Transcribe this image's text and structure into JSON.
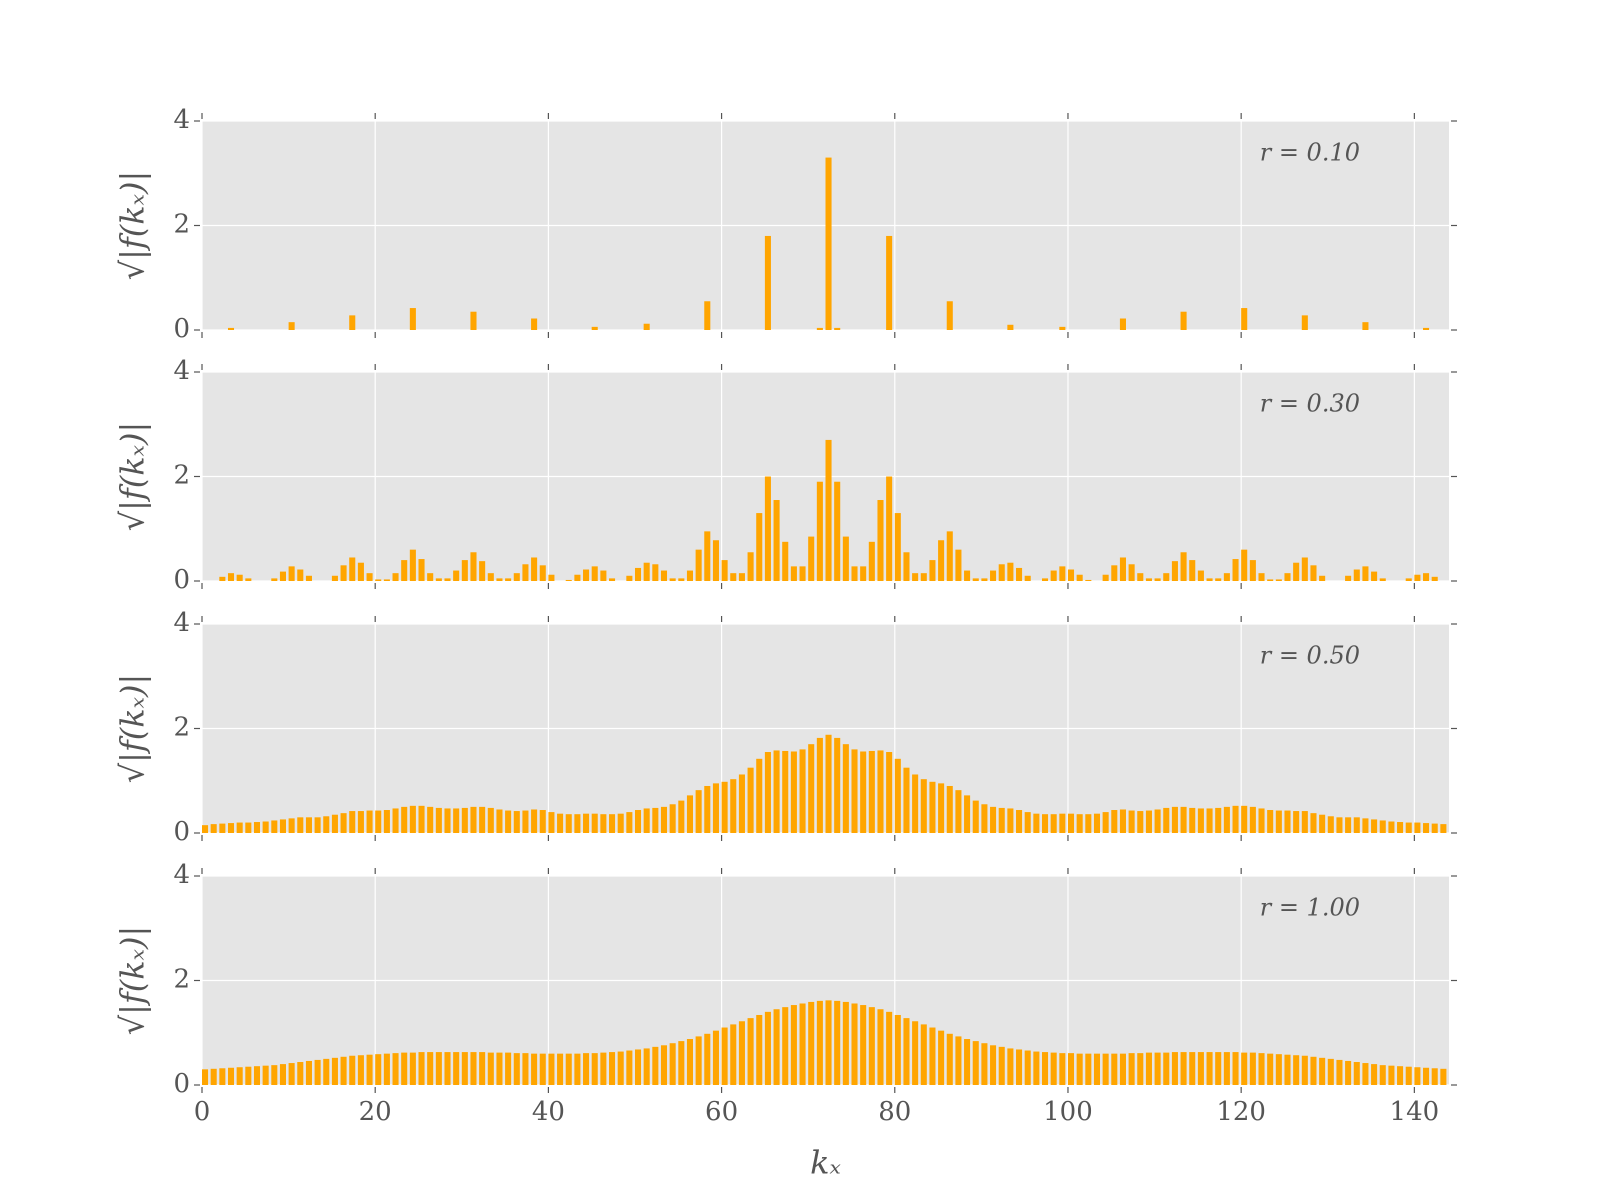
{
  "chart_data": {
    "type": "bar",
    "color": "#ffa500",
    "grid": true,
    "xlabel": "kₓ",
    "ylabel": "√|f(kₓ)|",
    "xlim": [
      0,
      144
    ],
    "xticks": [
      0,
      20,
      40,
      60,
      80,
      100,
      120,
      140
    ],
    "ylim": [
      0,
      4
    ],
    "yticks": [
      0,
      2,
      4
    ],
    "x": [
      0,
      1,
      2,
      3,
      4,
      5,
      6,
      7,
      8,
      9,
      10,
      11,
      12,
      13,
      14,
      15,
      16,
      17,
      18,
      19,
      20,
      21,
      22,
      23,
      24,
      25,
      26,
      27,
      28,
      29,
      30,
      31,
      32,
      33,
      34,
      35,
      36,
      37,
      38,
      39,
      40,
      41,
      42,
      43,
      44,
      45,
      46,
      47,
      48,
      49,
      50,
      51,
      52,
      53,
      54,
      55,
      56,
      57,
      58,
      59,
      60,
      61,
      62,
      63,
      64,
      65,
      66,
      67,
      68,
      69,
      70,
      71,
      72,
      73,
      74,
      75,
      76,
      77,
      78,
      79,
      80,
      81,
      82,
      83,
      84,
      85,
      86,
      87,
      88,
      89,
      90,
      91,
      92,
      93,
      94,
      95,
      96,
      97,
      98,
      99,
      100,
      101,
      102,
      103,
      104,
      105,
      106,
      107,
      108,
      109,
      110,
      111,
      112,
      113,
      114,
      115,
      116,
      117,
      118,
      119,
      120,
      121,
      122,
      123,
      124,
      125,
      126,
      127,
      128,
      129,
      130,
      131,
      132,
      133,
      134,
      135,
      136,
      137,
      138,
      139,
      140,
      141,
      142,
      143
    ],
    "series": [
      {
        "name": "r = 0.10",
        "values": [
          0,
          0,
          0,
          0.04,
          0,
          0,
          0,
          0,
          0,
          0,
          0.15,
          0,
          0,
          0,
          0,
          0,
          0,
          0.28,
          0,
          0,
          0,
          0,
          0,
          0,
          0.42,
          0,
          0,
          0,
          0,
          0,
          0,
          0.35,
          0,
          0,
          0,
          0,
          0,
          0,
          0.22,
          0,
          0,
          0,
          0,
          0,
          0,
          0.06,
          0,
          0,
          0,
          0,
          0,
          0.12,
          0,
          0,
          0,
          0,
          0,
          0,
          0.55,
          0,
          0,
          0,
          0,
          0,
          0,
          1.8,
          0,
          0,
          0,
          0,
          0,
          0.04,
          3.3,
          0.04,
          0,
          0,
          0,
          0,
          0,
          1.8,
          0,
          0,
          0,
          0,
          0,
          0,
          0.55,
          0,
          0,
          0,
          0,
          0,
          0,
          0.1,
          0,
          0,
          0,
          0,
          0,
          0.06,
          0,
          0,
          0,
          0,
          0,
          0,
          0.22,
          0,
          0,
          0,
          0,
          0,
          0,
          0.35,
          0,
          0,
          0,
          0,
          0,
          0,
          0.42,
          0,
          0,
          0,
          0,
          0,
          0,
          0.28,
          0,
          0,
          0,
          0,
          0,
          0,
          0.15,
          0,
          0,
          0,
          0,
          0,
          0,
          0.04,
          0,
          0
        ]
      },
      {
        "name": "r = 0.30",
        "values": [
          0,
          0,
          0.08,
          0.15,
          0.12,
          0.05,
          0,
          0,
          0.05,
          0.18,
          0.28,
          0.22,
          0.1,
          0,
          0,
          0.1,
          0.3,
          0.45,
          0.35,
          0.15,
          0.03,
          0.03,
          0.15,
          0.4,
          0.6,
          0.42,
          0.15,
          0.05,
          0.05,
          0.2,
          0.4,
          0.55,
          0.38,
          0.15,
          0.05,
          0.05,
          0.15,
          0.32,
          0.45,
          0.3,
          0.12,
          0,
          0.02,
          0.12,
          0.22,
          0.28,
          0.2,
          0.05,
          0,
          0.1,
          0.25,
          0.35,
          0.32,
          0.2,
          0.05,
          0.05,
          0.2,
          0.6,
          0.95,
          0.78,
          0.4,
          0.15,
          0.15,
          0.55,
          1.3,
          2.0,
          1.55,
          0.75,
          0.28,
          0.28,
          0.85,
          1.9,
          2.7,
          1.9,
          0.85,
          0.28,
          0.28,
          0.75,
          1.55,
          2.0,
          1.3,
          0.55,
          0.15,
          0.15,
          0.4,
          0.78,
          0.95,
          0.6,
          0.2,
          0.05,
          0.05,
          0.2,
          0.32,
          0.35,
          0.25,
          0.1,
          0,
          0.05,
          0.2,
          0.28,
          0.22,
          0.12,
          0.02,
          0,
          0.12,
          0.3,
          0.45,
          0.32,
          0.15,
          0.05,
          0.05,
          0.15,
          0.38,
          0.55,
          0.4,
          0.2,
          0.05,
          0.05,
          0.15,
          0.42,
          0.6,
          0.4,
          0.15,
          0.03,
          0.03,
          0.15,
          0.35,
          0.45,
          0.3,
          0.1,
          0,
          0,
          0.1,
          0.22,
          0.28,
          0.18,
          0.05,
          0,
          0,
          0.05,
          0.12,
          0.15,
          0.08,
          0
        ]
      },
      {
        "name": "r = 0.50",
        "values": [
          0.15,
          0.17,
          0.18,
          0.19,
          0.2,
          0.2,
          0.21,
          0.22,
          0.24,
          0.26,
          0.28,
          0.3,
          0.3,
          0.3,
          0.32,
          0.35,
          0.38,
          0.42,
          0.42,
          0.43,
          0.43,
          0.44,
          0.47,
          0.5,
          0.52,
          0.52,
          0.5,
          0.48,
          0.47,
          0.47,
          0.48,
          0.5,
          0.5,
          0.48,
          0.45,
          0.43,
          0.42,
          0.43,
          0.45,
          0.44,
          0.4,
          0.37,
          0.36,
          0.36,
          0.37,
          0.37,
          0.36,
          0.36,
          0.37,
          0.4,
          0.44,
          0.47,
          0.48,
          0.5,
          0.55,
          0.62,
          0.72,
          0.82,
          0.9,
          0.95,
          0.98,
          1.03,
          1.12,
          1.25,
          1.42,
          1.55,
          1.58,
          1.57,
          1.56,
          1.6,
          1.7,
          1.82,
          1.88,
          1.82,
          1.7,
          1.6,
          1.56,
          1.57,
          1.58,
          1.55,
          1.42,
          1.25,
          1.12,
          1.03,
          0.98,
          0.95,
          0.9,
          0.82,
          0.72,
          0.62,
          0.55,
          0.5,
          0.48,
          0.47,
          0.44,
          0.4,
          0.37,
          0.36,
          0.36,
          0.37,
          0.37,
          0.36,
          0.36,
          0.37,
          0.4,
          0.44,
          0.45,
          0.43,
          0.42,
          0.43,
          0.45,
          0.48,
          0.5,
          0.5,
          0.48,
          0.47,
          0.47,
          0.48,
          0.5,
          0.52,
          0.52,
          0.5,
          0.47,
          0.44,
          0.43,
          0.43,
          0.42,
          0.42,
          0.38,
          0.35,
          0.32,
          0.3,
          0.3,
          0.3,
          0.28,
          0.26,
          0.24,
          0.22,
          0.21,
          0.2,
          0.2,
          0.19,
          0.18,
          0.17
        ]
      },
      {
        "name": "r = 1.00",
        "values": [
          0.3,
          0.31,
          0.32,
          0.33,
          0.34,
          0.35,
          0.36,
          0.37,
          0.38,
          0.4,
          0.42,
          0.44,
          0.46,
          0.48,
          0.5,
          0.52,
          0.54,
          0.56,
          0.57,
          0.58,
          0.59,
          0.6,
          0.61,
          0.62,
          0.62,
          0.63,
          0.63,
          0.63,
          0.63,
          0.63,
          0.63,
          0.63,
          0.63,
          0.62,
          0.62,
          0.62,
          0.61,
          0.61,
          0.6,
          0.6,
          0.6,
          0.6,
          0.6,
          0.6,
          0.61,
          0.61,
          0.62,
          0.63,
          0.64,
          0.66,
          0.68,
          0.7,
          0.73,
          0.76,
          0.8,
          0.84,
          0.88,
          0.93,
          0.98,
          1.04,
          1.1,
          1.16,
          1.22,
          1.28,
          1.34,
          1.4,
          1.45,
          1.49,
          1.53,
          1.56,
          1.59,
          1.61,
          1.62,
          1.61,
          1.59,
          1.56,
          1.53,
          1.49,
          1.45,
          1.4,
          1.34,
          1.28,
          1.22,
          1.16,
          1.1,
          1.04,
          0.98,
          0.93,
          0.88,
          0.84,
          0.8,
          0.76,
          0.73,
          0.7,
          0.68,
          0.66,
          0.64,
          0.63,
          0.62,
          0.61,
          0.61,
          0.6,
          0.6,
          0.6,
          0.6,
          0.6,
          0.6,
          0.61,
          0.61,
          0.62,
          0.62,
          0.62,
          0.63,
          0.63,
          0.63,
          0.63,
          0.63,
          0.63,
          0.63,
          0.63,
          0.62,
          0.62,
          0.61,
          0.6,
          0.59,
          0.58,
          0.57,
          0.56,
          0.54,
          0.52,
          0.5,
          0.48,
          0.46,
          0.44,
          0.42,
          0.4,
          0.38,
          0.37,
          0.36,
          0.35,
          0.34,
          0.33,
          0.32,
          0.31
        ]
      }
    ]
  }
}
